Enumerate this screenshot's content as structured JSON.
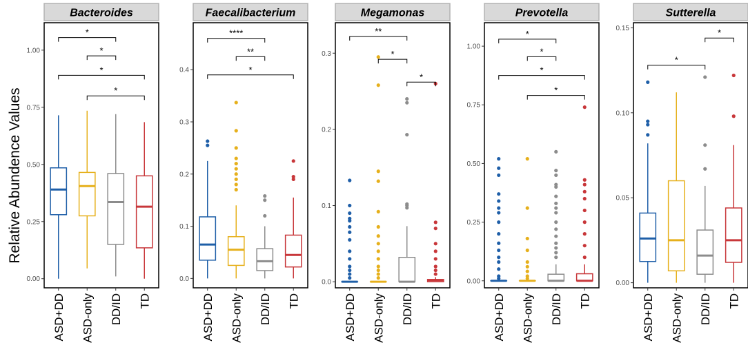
{
  "chart_data": {
    "type": "box",
    "ylabel": "Relative Abundence Values",
    "categories": [
      "ASD+DD",
      "ASD-only",
      "DD/ID",
      "TD"
    ],
    "colors": [
      "#1f5fa8",
      "#e6b01c",
      "#8c8c8c",
      "#c8373a"
    ],
    "panels": [
      {
        "title": "Bacteroides",
        "ylim": [
          -0.04,
          1.12
        ],
        "yticks": [
          0,
          0.25,
          0.5,
          0.75,
          1
        ],
        "tick_labels": [
          "0.00",
          "0.25",
          "0.50",
          "0.75",
          "1.00"
        ],
        "boxes": [
          {
            "q1": 0.28,
            "median": 0.39,
            "q3": 0.485,
            "lo": 0.0,
            "hi": 0.715,
            "outliers": []
          },
          {
            "q1": 0.275,
            "median": 0.405,
            "q3": 0.465,
            "lo": 0.045,
            "hi": 0.735,
            "outliers": []
          },
          {
            "q1": 0.15,
            "median": 0.335,
            "q3": 0.46,
            "lo": 0.01,
            "hi": 0.72,
            "outliers": []
          },
          {
            "q1": 0.135,
            "median": 0.315,
            "q3": 0.45,
            "lo": 0.0,
            "hi": 0.685,
            "outliers": []
          }
        ],
        "brackets": [
          {
            "from": 0,
            "to": 2,
            "y": 1.055,
            "label": "*"
          },
          {
            "from": 1,
            "to": 2,
            "y": 0.975,
            "label": "*"
          },
          {
            "from": 0,
            "to": 3,
            "y": 0.89,
            "label": "*"
          },
          {
            "from": 1,
            "to": 3,
            "y": 0.8,
            "label": "*"
          }
        ]
      },
      {
        "title": "Faecalibacterium",
        "ylim": [
          -0.018,
          0.49
        ],
        "yticks": [
          0,
          0.1,
          0.2,
          0.3,
          0.4
        ],
        "tick_labels": [
          "0.0",
          "0.1",
          "0.2",
          "0.3",
          "0.4"
        ],
        "boxes": [
          {
            "q1": 0.035,
            "median": 0.065,
            "q3": 0.118,
            "lo": 0.0,
            "hi": 0.225,
            "outliers": [
              0.255,
              0.263
            ]
          },
          {
            "q1": 0.025,
            "median": 0.055,
            "q3": 0.08,
            "lo": 0.0,
            "hi": 0.14,
            "outliers": [
              0.17,
              0.18,
              0.19,
              0.2,
              0.21,
              0.22,
              0.23,
              0.25,
              0.283,
              0.337
            ]
          },
          {
            "q1": 0.015,
            "median": 0.033,
            "q3": 0.057,
            "lo": 0.0,
            "hi": 0.1,
            "outliers": [
              0.12,
              0.15,
              0.158
            ]
          },
          {
            "q1": 0.022,
            "median": 0.045,
            "q3": 0.083,
            "lo": 0.0,
            "hi": 0.155,
            "outliers": [
              0.19,
              0.195,
              0.225
            ]
          }
        ],
        "brackets": [
          {
            "from": 0,
            "to": 2,
            "y": 0.46,
            "label": "****"
          },
          {
            "from": 1,
            "to": 2,
            "y": 0.425,
            "label": "**"
          },
          {
            "from": 0,
            "to": 3,
            "y": 0.39,
            "label": "*"
          }
        ]
      },
      {
        "title": "Megamonas",
        "ylim": [
          -0.008,
          0.34
        ],
        "yticks": [
          0,
          0.1,
          0.2,
          0.3
        ],
        "tick_labels": [
          "0.0",
          "0.1",
          "0.2",
          "0.3"
        ],
        "boxes": [
          {
            "q1": 0.0,
            "median": 0.0,
            "q3": 0.0,
            "lo": 0.0,
            "hi": 0.0,
            "outliers": [
              0.005,
              0.01,
              0.015,
              0.02,
              0.03,
              0.04,
              0.055,
              0.065,
              0.072,
              0.08,
              0.083,
              0.09,
              0.1,
              0.133
            ]
          },
          {
            "q1": 0.0,
            "median": 0.0,
            "q3": 0.0,
            "lo": 0.0,
            "hi": 0.0,
            "outliers": [
              0.005,
              0.01,
              0.015,
              0.02,
              0.03,
              0.04,
              0.05,
              0.06,
              0.072,
              0.092,
              0.132,
              0.145,
              0.258,
              0.295
            ]
          },
          {
            "q1": 0.0,
            "median": 0.0,
            "q3": 0.032,
            "lo": 0.0,
            "hi": 0.073,
            "outliers": [
              0.097,
              0.1,
              0.102,
              0.193,
              0.235,
              0.24
            ]
          },
          {
            "q1": 0.0,
            "median": 0.002,
            "q3": 0.003,
            "lo": 0.0,
            "hi": 0.006,
            "outliers": [
              0.01,
              0.015,
              0.02,
              0.03,
              0.04,
              0.05,
              0.07,
              0.078,
              0.26
            ]
          }
        ],
        "brackets": [
          {
            "from": 0,
            "to": 2,
            "y": 0.322,
            "label": "**"
          },
          {
            "from": 1,
            "to": 2,
            "y": 0.292,
            "label": "*"
          },
          {
            "from": 2,
            "to": 3,
            "y": 0.262,
            "label": "*"
          }
        ]
      },
      {
        "title": "Prevotella",
        "ylim": [
          -0.03,
          1.1
        ],
        "yticks": [
          0,
          0.25,
          0.5,
          0.75,
          1
        ],
        "tick_labels": [
          "0.00",
          "0.25",
          "0.50",
          "0.75",
          "1.00"
        ],
        "boxes": [
          {
            "q1": 0.0,
            "median": 0.0,
            "q3": 0.0,
            "lo": 0.0,
            "hi": 0.0,
            "outliers": [
              0.01,
              0.02,
              0.05,
              0.08,
              0.1,
              0.13,
              0.16,
              0.2,
              0.25,
              0.29,
              0.31,
              0.34,
              0.37,
              0.45,
              0.48,
              0.52
            ]
          },
          {
            "q1": 0.0,
            "median": 0.0,
            "q3": 0.0,
            "lo": 0.0,
            "hi": 0.0,
            "outliers": [
              0.01,
              0.02,
              0.04,
              0.06,
              0.08,
              0.13,
              0.18,
              0.31,
              0.52
            ]
          },
          {
            "q1": 0.0,
            "median": 0.0,
            "q3": 0.028,
            "lo": 0.0,
            "hi": 0.07,
            "outliers": [
              0.1,
              0.12,
              0.14,
              0.16,
              0.19,
              0.22,
              0.25,
              0.29,
              0.31,
              0.33,
              0.36,
              0.4,
              0.41,
              0.45,
              0.47,
              0.55
            ]
          },
          {
            "q1": 0.0,
            "median": 0.0,
            "q3": 0.03,
            "lo": 0.0,
            "hi": 0.07,
            "outliers": [
              0.1,
              0.15,
              0.2,
              0.25,
              0.3,
              0.35,
              0.38,
              0.41,
              0.43,
              0.74
            ]
          }
        ],
        "brackets": [
          {
            "from": 0,
            "to": 2,
            "y": 1.03,
            "label": "*"
          },
          {
            "from": 1,
            "to": 2,
            "y": 0.955,
            "label": "*"
          },
          {
            "from": 0,
            "to": 3,
            "y": 0.875,
            "label": "*"
          },
          {
            "from": 1,
            "to": 3,
            "y": 0.79,
            "label": "*"
          }
        ]
      },
      {
        "title": "Sutterella",
        "ylim": [
          -0.003,
          0.153
        ],
        "yticks": [
          0,
          0.05,
          0.1,
          0.15
        ],
        "tick_labels": [
          "0.00",
          "0.05",
          "0.10",
          "0.15"
        ],
        "boxes": [
          {
            "q1": 0.0125,
            "median": 0.026,
            "q3": 0.041,
            "lo": 0.0,
            "hi": 0.082,
            "outliers": [
              0.087,
              0.093,
              0.095,
              0.118
            ]
          },
          {
            "q1": 0.007,
            "median": 0.025,
            "q3": 0.06,
            "lo": 0.0,
            "hi": 0.112,
            "outliers": []
          },
          {
            "q1": 0.005,
            "median": 0.016,
            "q3": 0.031,
            "lo": 0.0,
            "hi": 0.057,
            "outliers": [
              0.067,
              0.081,
              0.121
            ]
          },
          {
            "q1": 0.012,
            "median": 0.025,
            "q3": 0.044,
            "lo": 0.0,
            "hi": 0.081,
            "outliers": [
              0.098,
              0.122
            ]
          }
        ],
        "brackets": [
          {
            "from": 0,
            "to": 2,
            "y": 0.128,
            "label": "*"
          },
          {
            "from": 2,
            "to": 3,
            "y": 0.144,
            "label": "*"
          }
        ]
      }
    ]
  }
}
